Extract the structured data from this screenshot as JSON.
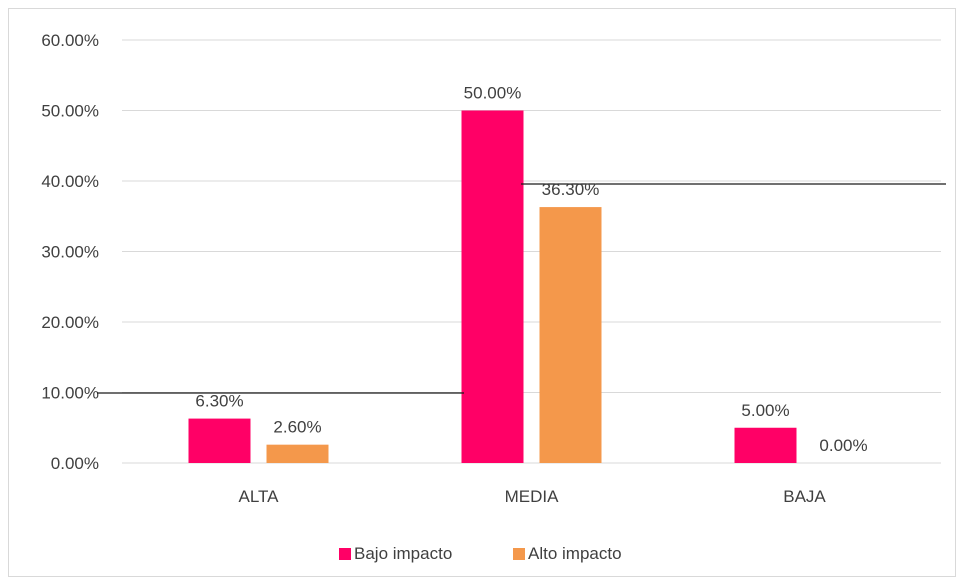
{
  "chart_data": {
    "type": "bar",
    "categories": [
      "ALTA",
      "MEDIA",
      "BAJA"
    ],
    "series": [
      {
        "name": "Bajo impacto",
        "values": [
          6.3,
          50.0,
          5.0
        ],
        "labels": [
          "6.30%",
          "50.00%",
          "5.00%"
        ]
      },
      {
        "name": "Alto impacto",
        "values": [
          2.6,
          36.3,
          0.0
        ],
        "labels": [
          "2.60%",
          "36.30%",
          "0.00%"
        ]
      }
    ],
    "ylim": [
      0,
      60
    ],
    "yticks": [
      {
        "value": 0,
        "label": "0.00%"
      },
      {
        "value": 10,
        "label": "10.00%"
      },
      {
        "value": 20,
        "label": "20.00%"
      },
      {
        "value": 30,
        "label": "30.00%"
      },
      {
        "value": 40,
        "label": "40.00%"
      },
      {
        "value": 50,
        "label": "50.00%"
      },
      {
        "value": 60,
        "label": "60.00%"
      }
    ],
    "title": "",
    "xlabel": "",
    "ylabel": "",
    "grid": true,
    "legend_position": "bottom",
    "colors": {
      "Bajo impacto": "#ff0066",
      "Alto impacto": "#f4984b"
    }
  }
}
